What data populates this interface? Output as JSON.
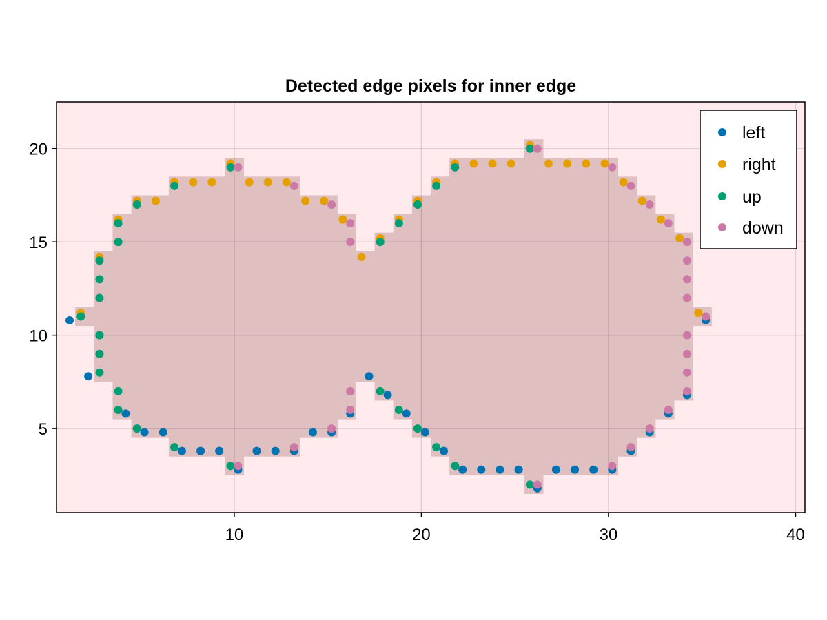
{
  "chart_data": {
    "type": "scatter",
    "title": "Detected edge pixels for inner edge",
    "xlabel": "",
    "ylabel": "",
    "xlim": [
      0.5,
      40.5
    ],
    "ylim": [
      0.5,
      22.5
    ],
    "x_ticks": [
      10,
      20,
      30,
      40
    ],
    "y_ticks": [
      5,
      10,
      15,
      20
    ],
    "grid": true,
    "legend_position": "top-right",
    "background_color": "#ffebee",
    "region_color": "#e0bfc1",
    "region_columns": [
      {
        "x": 1,
        "y0": 10.5,
        "y1": 11.5
      },
      {
        "x": 2,
        "y0": 7.5,
        "y1": 14.5
      },
      {
        "x": 3,
        "y0": 5.5,
        "y1": 16.5
      },
      {
        "x": 4,
        "y0": 4.5,
        "y1": 17.5
      },
      {
        "x": 5,
        "y0": 4.5,
        "y1": 17.5
      },
      {
        "x": 6,
        "y0": 3.5,
        "y1": 18.5
      },
      {
        "x": 7,
        "y0": 3.5,
        "y1": 18.5
      },
      {
        "x": 8,
        "y0": 3.5,
        "y1": 18.5
      },
      {
        "x": 9,
        "y0": 2.5,
        "y1": 19.5
      },
      {
        "x": 10,
        "y0": 3.5,
        "y1": 18.5
      },
      {
        "x": 11,
        "y0": 3.5,
        "y1": 18.5
      },
      {
        "x": 12,
        "y0": 3.5,
        "y1": 18.5
      },
      {
        "x": 13,
        "y0": 4.5,
        "y1": 17.5
      },
      {
        "x": 14,
        "y0": 4.5,
        "y1": 17.5
      },
      {
        "x": 15,
        "y0": 5.5,
        "y1": 16.5
      },
      {
        "x": 16,
        "y0": 7.5,
        "y1": 14.5
      },
      {
        "x": 17,
        "y0": 6.5,
        "y1": 15.5
      },
      {
        "x": 18,
        "y0": 5.5,
        "y1": 16.5
      },
      {
        "x": 19,
        "y0": 4.5,
        "y1": 17.5
      },
      {
        "x": 20,
        "y0": 3.5,
        "y1": 18.5
      },
      {
        "x": 21,
        "y0": 2.5,
        "y1": 19.5
      },
      {
        "x": 22,
        "y0": 2.5,
        "y1": 19.5
      },
      {
        "x": 23,
        "y0": 2.5,
        "y1": 19.5
      },
      {
        "x": 24,
        "y0": 2.5,
        "y1": 19.5
      },
      {
        "x": 25,
        "y0": 1.5,
        "y1": 20.5
      },
      {
        "x": 26,
        "y0": 2.5,
        "y1": 19.5
      },
      {
        "x": 27,
        "y0": 2.5,
        "y1": 19.5
      },
      {
        "x": 28,
        "y0": 2.5,
        "y1": 19.5
      },
      {
        "x": 29,
        "y0": 2.5,
        "y1": 19.5
      },
      {
        "x": 30,
        "y0": 3.5,
        "y1": 18.5
      },
      {
        "x": 31,
        "y0": 4.5,
        "y1": 17.5
      },
      {
        "x": 32,
        "y0": 5.5,
        "y1": 16.5
      },
      {
        "x": 33,
        "y0": 6.5,
        "y1": 15.5
      },
      {
        "x": 34,
        "y0": 10.5,
        "y1": 11.5
      }
    ],
    "series": [
      {
        "name": "left",
        "color": "#0072b2",
        "points": [
          [
            1.2,
            10.8
          ],
          [
            2.2,
            7.8
          ],
          [
            4.2,
            5.8
          ],
          [
            5.2,
            4.8
          ],
          [
            6.2,
            4.8
          ],
          [
            7.2,
            3.8
          ],
          [
            8.2,
            3.8
          ],
          [
            9.2,
            3.8
          ],
          [
            10.2,
            2.8
          ],
          [
            11.2,
            3.8
          ],
          [
            12.2,
            3.8
          ],
          [
            13.2,
            3.8
          ],
          [
            14.2,
            4.8
          ],
          [
            15.2,
            4.8
          ],
          [
            16.2,
            5.8
          ],
          [
            17.2,
            7.8
          ],
          [
            18.2,
            6.8
          ],
          [
            19.2,
            5.8
          ],
          [
            20.2,
            4.8
          ],
          [
            21.2,
            3.8
          ],
          [
            22.2,
            2.8
          ],
          [
            23.2,
            2.8
          ],
          [
            24.2,
            2.8
          ],
          [
            25.2,
            2.8
          ],
          [
            26.2,
            1.8
          ],
          [
            27.2,
            2.8
          ],
          [
            28.2,
            2.8
          ],
          [
            29.2,
            2.8
          ],
          [
            30.2,
            2.8
          ],
          [
            31.2,
            3.8
          ],
          [
            32.2,
            4.8
          ],
          [
            33.2,
            5.8
          ],
          [
            34.2,
            6.8
          ],
          [
            35.2,
            10.8
          ]
        ]
      },
      {
        "name": "right",
        "color": "#e69f00",
        "points": [
          [
            1.8,
            11.2
          ],
          [
            2.8,
            14.2
          ],
          [
            3.8,
            16.2
          ],
          [
            4.8,
            17.2
          ],
          [
            5.8,
            17.2
          ],
          [
            6.8,
            18.2
          ],
          [
            7.8,
            18.2
          ],
          [
            8.8,
            18.2
          ],
          [
            9.8,
            19.2
          ],
          [
            10.8,
            18.2
          ],
          [
            11.8,
            18.2
          ],
          [
            12.8,
            18.2
          ],
          [
            13.8,
            17.2
          ],
          [
            14.8,
            17.2
          ],
          [
            15.8,
            16.2
          ],
          [
            16.8,
            14.2
          ],
          [
            17.8,
            15.2
          ],
          [
            18.8,
            16.2
          ],
          [
            19.8,
            17.2
          ],
          [
            20.8,
            18.2
          ],
          [
            21.8,
            19.2
          ],
          [
            22.8,
            19.2
          ],
          [
            23.8,
            19.2
          ],
          [
            24.8,
            19.2
          ],
          [
            25.8,
            20.2
          ],
          [
            26.8,
            19.2
          ],
          [
            27.8,
            19.2
          ],
          [
            28.8,
            19.2
          ],
          [
            29.8,
            19.2
          ],
          [
            30.8,
            18.2
          ],
          [
            31.8,
            17.2
          ],
          [
            32.8,
            16.2
          ],
          [
            33.8,
            15.2
          ],
          [
            34.8,
            11.2
          ]
        ]
      },
      {
        "name": "up",
        "color": "#009e73",
        "points": [
          [
            1.8,
            11
          ],
          [
            2.8,
            14
          ],
          [
            2.8,
            13
          ],
          [
            2.8,
            12
          ],
          [
            2.8,
            10
          ],
          [
            2.8,
            9
          ],
          [
            2.8,
            8
          ],
          [
            3.8,
            16
          ],
          [
            3.8,
            15
          ],
          [
            3.8,
            7
          ],
          [
            3.8,
            6
          ],
          [
            4.8,
            17
          ],
          [
            4.8,
            5
          ],
          [
            6.8,
            18
          ],
          [
            6.8,
            4
          ],
          [
            9.8,
            19
          ],
          [
            9.8,
            3
          ],
          [
            17.8,
            15
          ],
          [
            17.8,
            7
          ],
          [
            18.8,
            16
          ],
          [
            18.8,
            6
          ],
          [
            19.8,
            17
          ],
          [
            19.8,
            5
          ],
          [
            20.8,
            18
          ],
          [
            20.8,
            4
          ],
          [
            21.8,
            19
          ],
          [
            21.8,
            3
          ],
          [
            25.8,
            20
          ],
          [
            25.8,
            2
          ]
        ]
      },
      {
        "name": "down",
        "color": "#cc79a7",
        "points": [
          [
            10.2,
            19
          ],
          [
            10.2,
            3
          ],
          [
            13.2,
            18
          ],
          [
            13.2,
            4
          ],
          [
            15.2,
            17
          ],
          [
            15.2,
            5
          ],
          [
            16.2,
            16
          ],
          [
            16.2,
            15
          ],
          [
            16.2,
            7
          ],
          [
            16.2,
            6
          ],
          [
            26.2,
            20
          ],
          [
            26.2,
            2
          ],
          [
            30.2,
            19
          ],
          [
            30.2,
            3
          ],
          [
            31.2,
            18
          ],
          [
            31.2,
            4
          ],
          [
            32.2,
            17
          ],
          [
            32.2,
            5
          ],
          [
            33.2,
            16
          ],
          [
            33.2,
            6
          ],
          [
            34.2,
            15
          ],
          [
            34.2,
            14
          ],
          [
            34.2,
            13
          ],
          [
            34.2,
            12
          ],
          [
            34.2,
            10
          ],
          [
            34.2,
            9
          ],
          [
            34.2,
            8
          ],
          [
            34.2,
            7
          ],
          [
            35.2,
            11
          ]
        ]
      }
    ]
  }
}
